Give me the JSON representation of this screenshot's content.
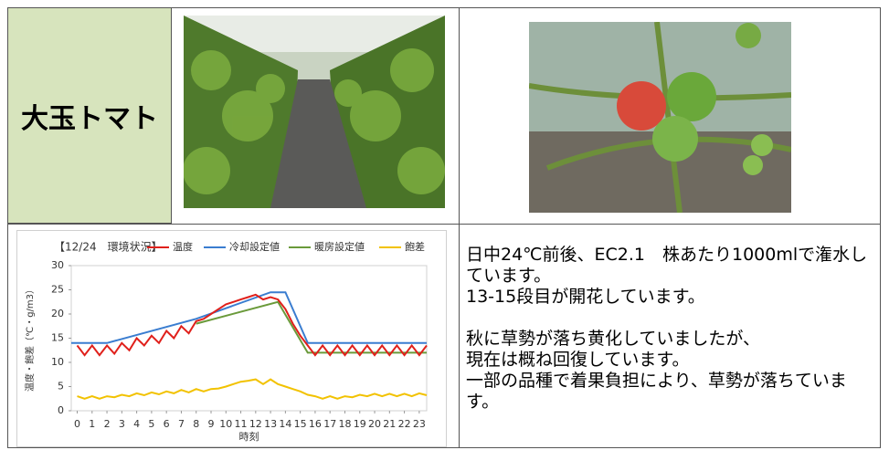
{
  "header": {
    "title": "大玉トマト"
  },
  "chart_data": {
    "type": "line",
    "title": "【12/24　環境状況】",
    "ylabel": "温度・飽差（℃・g/m3）",
    "xlabel": "時刻",
    "xlim": [
      -0.4,
      23.5
    ],
    "ylim": [
      0,
      30
    ],
    "xticks": [
      0,
      1,
      2,
      3,
      4,
      5,
      6,
      7,
      8,
      9,
      10,
      11,
      12,
      13,
      14,
      15,
      16,
      17,
      18,
      19,
      20,
      21,
      22,
      23
    ],
    "yticks": [
      0,
      5,
      10,
      15,
      20,
      25,
      30
    ],
    "grid": false,
    "series": [
      {
        "name": "温度",
        "color": "#e0201b",
        "x": [
          0,
          0.5,
          1,
          1.5,
          2,
          2.5,
          3,
          3.5,
          4,
          4.5,
          5,
          5.5,
          6,
          6.5,
          7,
          7.5,
          8,
          8.5,
          9,
          9.5,
          10,
          10.5,
          11,
          11.5,
          12,
          12.5,
          13,
          13.5,
          14,
          14.5,
          15,
          15.5,
          16,
          16.5,
          17,
          17.5,
          18,
          18.5,
          19,
          19.5,
          20,
          20.5,
          21,
          21.5,
          22,
          22.5,
          23,
          23.5
        ],
        "values": [
          13.5,
          11.5,
          13.5,
          11.5,
          13.5,
          11.8,
          14,
          12.5,
          15,
          13.5,
          15.5,
          14,
          16.5,
          15,
          17.5,
          16,
          18.5,
          19,
          20,
          21,
          22,
          22.5,
          23,
          23.5,
          24,
          23,
          23.5,
          23,
          21,
          18,
          15.5,
          13.5,
          11.5,
          13.5,
          11.5,
          13.5,
          11.5,
          13.5,
          11.5,
          13.5,
          11.5,
          13.5,
          11.5,
          13.5,
          11.5,
          13.5,
          11.5,
          13.5
        ]
      },
      {
        "name": "冷却設定値",
        "color": "#3a7dd0",
        "x": [
          -0.4,
          2,
          8,
          13,
          14,
          15.5,
          23.5
        ],
        "values": [
          14,
          14,
          19,
          24.5,
          24.5,
          14,
          14
        ]
      },
      {
        "name": "暖房設定値",
        "color": "#6a9a3a",
        "x": [
          8,
          13.5,
          15.5,
          23.5
        ],
        "values": [
          18,
          22.5,
          12,
          12
        ]
      },
      {
        "name": "飽差",
        "color": "#f2c200",
        "x": [
          0,
          0.5,
          1,
          1.5,
          2,
          2.5,
          3,
          3.5,
          4,
          4.5,
          5,
          5.5,
          6,
          6.5,
          7,
          7.5,
          8,
          8.5,
          9,
          9.5,
          10,
          10.5,
          11,
          11.5,
          12,
          12.5,
          13,
          13.5,
          14,
          14.5,
          15,
          15.5,
          16,
          16.5,
          17,
          17.5,
          18,
          18.5,
          19,
          19.5,
          20,
          20.5,
          21,
          21.5,
          22,
          22.5,
          23,
          23.5
        ],
        "values": [
          3,
          2.5,
          3,
          2.5,
          3,
          2.8,
          3.3,
          3,
          3.6,
          3.2,
          3.8,
          3.4,
          4,
          3.6,
          4.3,
          3.8,
          4.5,
          4,
          4.5,
          4.6,
          5,
          5.5,
          6,
          6.2,
          6.5,
          5.5,
          6.5,
          5.5,
          5,
          4.5,
          4,
          3.3,
          3,
          2.5,
          3,
          2.5,
          3,
          2.8,
          3.3,
          3,
          3.5,
          3,
          3.5,
          3,
          3.5,
          3,
          3.6,
          3.2
        ]
      }
    ]
  },
  "notes": [
    "日中24℃前後、EC2.1　株あたり1000mlで潅水しています。",
    "13-15段目が開花しています。",
    "秋に草勢が落ち黄化していましたが、",
    "現在は概ね回復しています。",
    "一部の品種で着果負担により、草勢が落ちています。"
  ]
}
